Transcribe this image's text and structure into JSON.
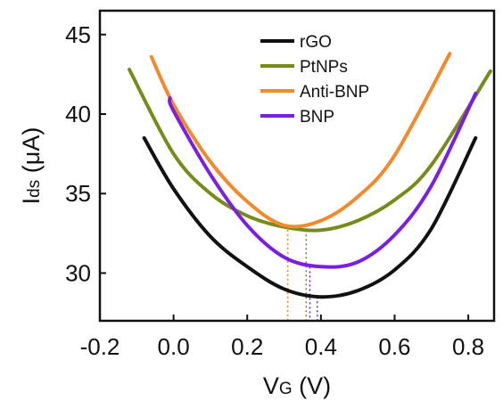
{
  "chart_data": {
    "type": "line",
    "title": "",
    "xlabel": "VG (V)",
    "xlabel_main": "V",
    "xlabel_sub": "G",
    "xlabel_unit": " (V)",
    "ylabel": "Ids (μA)",
    "ylabel_main": "I",
    "ylabel_sub": "ds",
    "ylabel_unit": " (μA)",
    "xlim": [
      -0.2,
      0.87
    ],
    "ylim": [
      27.0,
      46.5
    ],
    "xticks": [
      -0.2,
      0.0,
      0.2,
      0.4,
      0.6,
      0.8
    ],
    "xtick_labels": [
      "-0.2",
      "0.0",
      "0.2",
      "0.4",
      "0.6",
      "0.8"
    ],
    "yticks": [
      30,
      35,
      40,
      45
    ],
    "ytick_labels": [
      "30",
      "35",
      "40",
      "45"
    ],
    "grid": false,
    "legend_position": "top-center",
    "series": [
      {
        "name": "rGO",
        "color": "#111111",
        "x": [
          -0.08,
          0.0,
          0.1,
          0.2,
          0.3,
          0.4,
          0.5,
          0.6,
          0.7,
          0.82
        ],
        "y": [
          38.5,
          35.3,
          32.3,
          30.4,
          29.0,
          28.5,
          28.9,
          30.2,
          32.8,
          38.5
        ]
      },
      {
        "name": "PtNPs",
        "color": "#7a8a1a",
        "x": [
          -0.12,
          0.0,
          0.1,
          0.2,
          0.3,
          0.4,
          0.5,
          0.6,
          0.7,
          0.86
        ],
        "y": [
          42.8,
          37.5,
          35.0,
          33.6,
          32.9,
          32.7,
          33.3,
          34.6,
          36.8,
          42.7
        ]
      },
      {
        "name": "Anti-BNP",
        "color": "#f08a2a",
        "x": [
          -0.06,
          0.0,
          0.1,
          0.2,
          0.3,
          0.4,
          0.5,
          0.6,
          0.75
        ],
        "y": [
          43.6,
          40.6,
          37.0,
          34.5,
          33.0,
          33.3,
          34.8,
          37.4,
          43.8
        ]
      },
      {
        "name": "BNP",
        "color": "#7a1ee0",
        "x": [
          -0.01,
          0.0,
          0.1,
          0.2,
          0.3,
          0.4,
          0.5,
          0.6,
          0.7,
          0.82
        ],
        "y": [
          41.0,
          40.2,
          36.2,
          33.0,
          31.0,
          30.4,
          30.7,
          32.4,
          35.5,
          41.3
        ]
      }
    ],
    "vertical_markers": [
      {
        "x": 0.31,
        "y_top": 33.0,
        "color": "#f08a2a"
      },
      {
        "x": 0.36,
        "y_top": 32.7,
        "color": "#7a8a1a"
      },
      {
        "x": 0.37,
        "y_top": 30.4,
        "color": "#7a1ee0"
      },
      {
        "x": 0.39,
        "y_top": 28.5,
        "color": "#2a4fd0"
      }
    ]
  }
}
